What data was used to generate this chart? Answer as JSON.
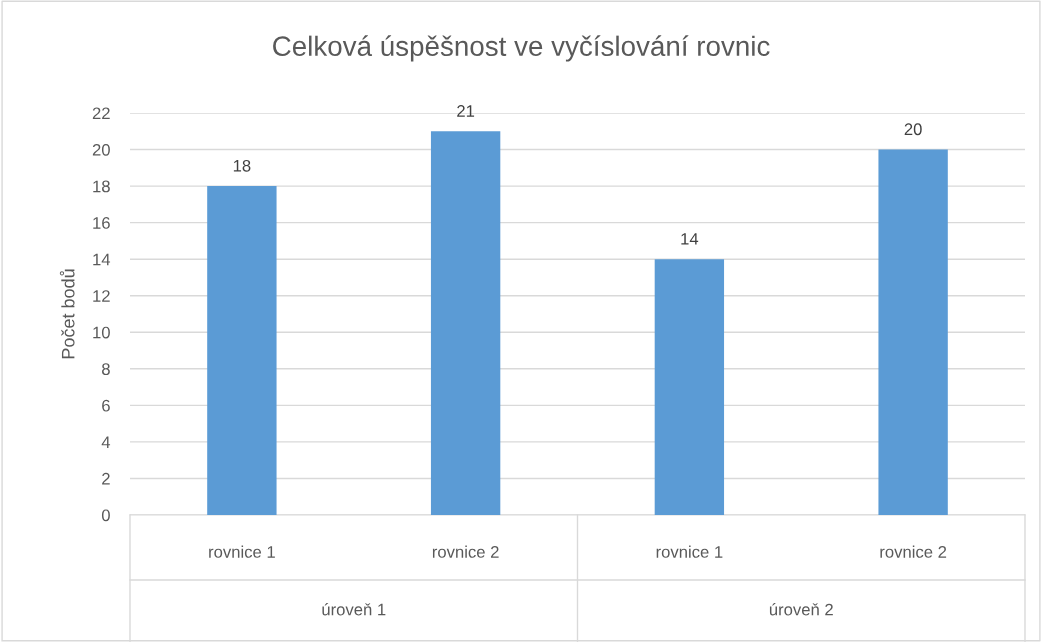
{
  "chart_data": {
    "type": "bar",
    "title": "Celková úspěšnost ve vyčíslování rovnic",
    "ylabel": "Počet bodů",
    "categories": [
      "rovnice 1",
      "rovnice 2",
      "rovnice 1",
      "rovnice 2"
    ],
    "values": [
      18,
      21,
      14,
      20
    ],
    "color": "#5b9bd5",
    "annotations": [
      "úroveň 1",
      "úroveň 2"
    ],
    "ylim": [
      0,
      22
    ],
    "yticks": [
      0,
      2,
      4,
      6,
      8,
      10,
      12,
      14,
      16,
      18,
      20,
      22
    ],
    "grid": "y",
    "data_labels": true
  }
}
